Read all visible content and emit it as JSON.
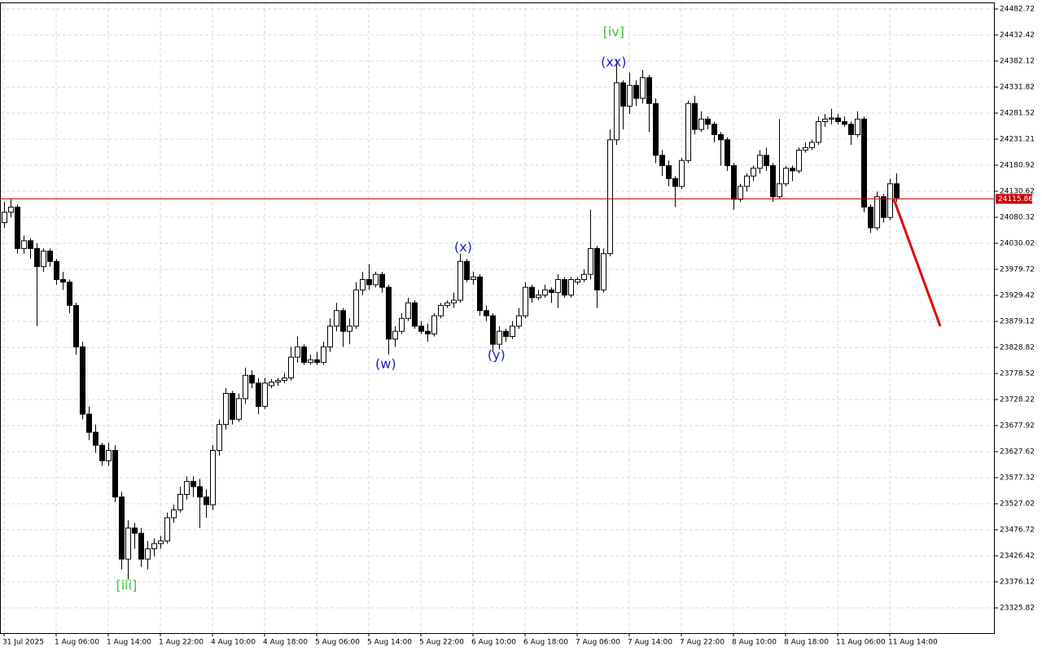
{
  "chart_data": {
    "type": "candlestick",
    "ylim": [
      23277.09,
      24495.29
    ],
    "yticks": [
      24482.72,
      24432.42,
      24382.12,
      24331.82,
      24281.52,
      24231.21,
      24180.92,
      24130.62,
      24080.32,
      24030.02,
      23979.72,
      23929.42,
      23879.12,
      23828.82,
      23778.52,
      23728.22,
      23677.92,
      23627.62,
      23577.32,
      23527.02,
      23476.72,
      23426.42,
      23376.12,
      23325.82
    ],
    "xticks": [
      {
        "value": 0,
        "label": "31 Jul 2025"
      },
      {
        "value": 8,
        "label": "1 Aug 06:00"
      },
      {
        "value": 16,
        "label": "1 Aug 14:00"
      },
      {
        "value": 24,
        "label": "1 Aug 22:00"
      },
      {
        "value": 32,
        "label": "4 Aug 10:00"
      },
      {
        "value": 40,
        "label": "4 Aug 18:00"
      },
      {
        "value": 48,
        "label": "5 Aug 06:00"
      },
      {
        "value": 56,
        "label": "5 Aug 14:00"
      },
      {
        "value": 64,
        "label": "5 Aug 22:00"
      },
      {
        "value": 72,
        "label": "6 Aug 10:00"
      },
      {
        "value": 80,
        "label": "6 Aug 18:00"
      },
      {
        "value": 88,
        "label": "7 Aug 06:00"
      },
      {
        "value": 96,
        "label": "7 Aug 14:00"
      },
      {
        "value": 104,
        "label": "7 Aug 22:00"
      },
      {
        "value": 112,
        "label": "8 Aug 10:00"
      },
      {
        "value": 120,
        "label": "8 Aug 18:00"
      },
      {
        "value": 128,
        "label": "11 Aug 06:00"
      },
      {
        "value": 136,
        "label": "11 Aug 14:00"
      }
    ],
    "grid": true,
    "up_color": "#ffffff",
    "down_color": "#000000",
    "ohlc": [
      [
        24070,
        24110,
        24060,
        24090
      ],
      [
        24090,
        24115,
        24080,
        24100
      ],
      [
        24100,
        24105,
        24010,
        24020
      ],
      [
        24020,
        24045,
        24010,
        24035
      ],
      [
        24035,
        24040,
        24000,
        24020
      ],
      [
        24020,
        24030,
        23870,
        23985
      ],
      [
        23985,
        24020,
        23975,
        24015
      ],
      [
        24015,
        24020,
        23985,
        23995
      ],
      [
        23995,
        24000,
        23950,
        23960
      ],
      [
        23960,
        23975,
        23940,
        23955
      ],
      [
        23955,
        23960,
        23895,
        23910
      ],
      [
        23910,
        23915,
        23815,
        23830
      ],
      [
        23830,
        23840,
        23690,
        23700
      ],
      [
        23700,
        23715,
        23650,
        23665
      ],
      [
        23665,
        23680,
        23625,
        23640
      ],
      [
        23640,
        23645,
        23600,
        23610
      ],
      [
        23610,
        23645,
        23600,
        23630
      ],
      [
        23630,
        23640,
        23530,
        23540
      ],
      [
        23540,
        23550,
        23400,
        23420
      ],
      [
        23420,
        23495,
        23380,
        23480
      ],
      [
        23480,
        23490,
        23440,
        23470
      ],
      [
        23470,
        23480,
        23405,
        23420
      ],
      [
        23420,
        23455,
        23400,
        23440
      ],
      [
        23440,
        23460,
        23425,
        23450
      ],
      [
        23450,
        23465,
        23440,
        23455
      ],
      [
        23455,
        23510,
        23450,
        23500
      ],
      [
        23500,
        23525,
        23490,
        23515
      ],
      [
        23515,
        23560,
        23510,
        23545
      ],
      [
        23545,
        23580,
        23535,
        23570
      ],
      [
        23570,
        23580,
        23540,
        23560
      ],
      [
        23560,
        23575,
        23480,
        23540
      ],
      [
        23540,
        23555,
        23500,
        23525
      ],
      [
        23525,
        23640,
        23515,
        23630
      ],
      [
        23630,
        23690,
        23620,
        23680
      ],
      [
        23680,
        23750,
        23670,
        23740
      ],
      [
        23740,
        23745,
        23680,
        23690
      ],
      [
        23690,
        23740,
        23685,
        23730
      ],
      [
        23730,
        23790,
        23720,
        23775
      ],
      [
        23775,
        23785,
        23750,
        23760
      ],
      [
        23760,
        23770,
        23700,
        23715
      ],
      [
        23715,
        23770,
        23710,
        23760
      ],
      [
        23755,
        23768,
        23750,
        23762
      ],
      [
        23762,
        23770,
        23755,
        23765
      ],
      [
        23765,
        23780,
        23760,
        23770
      ],
      [
        23770,
        23830,
        23765,
        23810
      ],
      [
        23810,
        23850,
        23800,
        23830
      ],
      [
        23830,
        23835,
        23795,
        23800
      ],
      [
        23800,
        23815,
        23795,
        23805
      ],
      [
        23805,
        23820,
        23795,
        23800
      ],
      [
        23800,
        23840,
        23795,
        23830
      ],
      [
        23830,
        23885,
        23820,
        23870
      ],
      [
        23870,
        23915,
        23860,
        23900
      ],
      [
        23900,
        23905,
        23830,
        23860
      ],
      [
        23860,
        23885,
        23835,
        23870
      ],
      [
        23870,
        23955,
        23865,
        23940
      ],
      [
        23940,
        23975,
        23930,
        23960
      ],
      [
        23960,
        23990,
        23940,
        23950
      ],
      [
        23950,
        23975,
        23945,
        23970
      ],
      [
        23970,
        23975,
        23935,
        23945
      ],
      [
        23945,
        23950,
        23815,
        23845
      ],
      [
        23845,
        23870,
        23830,
        23860
      ],
      [
        23860,
        23895,
        23855,
        23885
      ],
      [
        23885,
        23925,
        23880,
        23915
      ],
      [
        23915,
        23920,
        23865,
        23870
      ],
      [
        23870,
        23880,
        23855,
        23860
      ],
      [
        23860,
        23875,
        23840,
        23855
      ],
      [
        23855,
        23895,
        23850,
        23890
      ],
      [
        23890,
        23915,
        23885,
        23910
      ],
      [
        23910,
        23920,
        23905,
        23915
      ],
      [
        23915,
        23935,
        23905,
        23920
      ],
      [
        23920,
        24010,
        23915,
        23995
      ],
      [
        23995,
        24000,
        23955,
        23960
      ],
      [
        23960,
        23975,
        23950,
        23965
      ],
      [
        23965,
        23970,
        23890,
        23900
      ],
      [
        23900,
        23910,
        23880,
        23890
      ],
      [
        23890,
        23895,
        23820,
        23835
      ],
      [
        23835,
        23870,
        23825,
        23860
      ],
      [
        23860,
        23865,
        23840,
        23850
      ],
      [
        23850,
        23880,
        23845,
        23870
      ],
      [
        23870,
        23905,
        23865,
        23890
      ],
      [
        23890,
        23955,
        23885,
        23945
      ],
      [
        23945,
        23950,
        23915,
        23925
      ],
      [
        23925,
        23940,
        23920,
        23930
      ],
      [
        23930,
        23950,
        23925,
        23940
      ],
      [
        23940,
        23945,
        23915,
        23935
      ],
      [
        23935,
        23970,
        23905,
        23960
      ],
      [
        23960,
        23965,
        23925,
        23930
      ],
      [
        23930,
        23965,
        23925,
        23960
      ],
      [
        23955,
        23965,
        23950,
        23960
      ],
      [
        23960,
        23980,
        23955,
        23970
      ],
      [
        23970,
        24095,
        23960,
        24020
      ],
      [
        24020,
        24025,
        23905,
        23940
      ],
      [
        23940,
        24020,
        23935,
        24010
      ],
      [
        24010,
        24250,
        24005,
        24230
      ],
      [
        24230,
        24385,
        24220,
        24340
      ],
      [
        24340,
        24345,
        24250,
        24295
      ],
      [
        24295,
        24360,
        24280,
        24335
      ],
      [
        24335,
        24345,
        24295,
        24310
      ],
      [
        24310,
        24365,
        24300,
        24350
      ],
      [
        24350,
        24355,
        24245,
        24300
      ],
      [
        24300,
        24310,
        24185,
        24200
      ],
      [
        24200,
        24210,
        24160,
        24180
      ],
      [
        24180,
        24190,
        24140,
        24155
      ],
      [
        24155,
        24160,
        24100,
        24140
      ],
      [
        24140,
        24195,
        24135,
        24190
      ],
      [
        24190,
        24305,
        24185,
        24300
      ],
      [
        24300,
        24315,
        24240,
        24250
      ],
      [
        24250,
        24285,
        24245,
        24270
      ],
      [
        24270,
        24275,
        24250,
        24260
      ],
      [
        24260,
        24265,
        24225,
        24240
      ],
      [
        24240,
        24245,
        24180,
        24230
      ],
      [
        24230,
        24235,
        24170,
        24180
      ],
      [
        24180,
        24185,
        24095,
        24115
      ],
      [
        24115,
        24145,
        24110,
        24140
      ],
      [
        24140,
        24165,
        24130,
        24160
      ],
      [
        24160,
        24180,
        24150,
        24175
      ],
      [
        24175,
        24210,
        24165,
        24200
      ],
      [
        24200,
        24215,
        24170,
        24180
      ],
      [
        24180,
        24185,
        24110,
        24120
      ],
      [
        24120,
        24270,
        24115,
        24145
      ],
      [
        24145,
        24180,
        24140,
        24175
      ],
      [
        24175,
        24180,
        24150,
        24170
      ],
      [
        24170,
        24215,
        24165,
        24210
      ],
      [
        24210,
        24225,
        24205,
        24215
      ],
      [
        24215,
        24230,
        24210,
        24225
      ],
      [
        24225,
        24275,
        24220,
        24265
      ],
      [
        24265,
        24280,
        24255,
        24270
      ],
      [
        24270,
        24290,
        24260,
        24272
      ],
      [
        24272,
        24280,
        24260,
        24265
      ],
      [
        24265,
        24275,
        24255,
        24260
      ],
      [
        24260,
        24265,
        24220,
        24240
      ],
      [
        24240,
        24285,
        24235,
        24270
      ],
      [
        24270,
        24275,
        24090,
        24100
      ],
      [
        24100,
        24105,
        24050,
        24060
      ],
      [
        24060,
        24130,
        24055,
        24120
      ],
      [
        24120,
        24125,
        24070,
        24080
      ],
      [
        24080,
        24155,
        24075,
        24145
      ],
      [
        24145,
        24165,
        24110,
        24118
      ]
    ],
    "current_price": {
      "value": 24115.86,
      "color": "#c80000"
    },
    "forecast": {
      "color": "#e00000",
      "x": [
        136.6,
        143.75
      ],
      "values": [
        24115.86,
        23870
      ]
    },
    "annotations": [
      {
        "text": "[iii]",
        "x": 18.8,
        "value": 23368,
        "color": "#3cc43c"
      },
      {
        "text": "[iv]",
        "x": 93.6,
        "value": 24437,
        "color": "#3cc43c"
      },
      {
        "text": "(xx)",
        "x": 93.6,
        "value": 24379,
        "color": "#1a1ad0"
      },
      {
        "text": "(w)",
        "x": 58.6,
        "value": 23796,
        "color": "#1a1ad0"
      },
      {
        "text": "(x)",
        "x": 70.5,
        "value": 24021,
        "color": "#1a1ad0"
      },
      {
        "text": "(y)",
        "x": 75.6,
        "value": 23813,
        "color": "#1a1ad0"
      }
    ]
  }
}
